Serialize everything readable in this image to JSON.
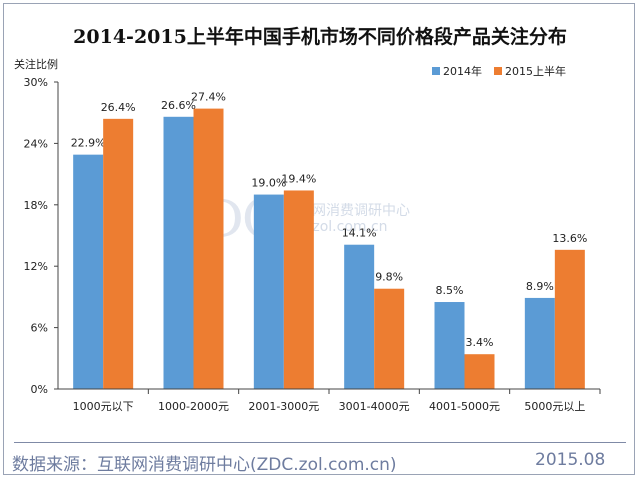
{
  "chart_data": {
    "type": "bar",
    "title": "2014-2015上半年中国手机市场不同价格段产品关注分布",
    "ylabel": "关注比例",
    "xlabel": "",
    "categories": [
      "1000元以下",
      "1000-2000元",
      "2001-3000元",
      "3001-4000元",
      "4001-5000元",
      "5000元以上"
    ],
    "series": [
      {
        "name": "2014年",
        "color": "#5b9bd5",
        "values": [
          22.9,
          26.6,
          19.0,
          14.1,
          8.5,
          8.9
        ],
        "labels": [
          "22.9%",
          "26.6%",
          "19.0%",
          "14.1%",
          "8.5%",
          "8.9%"
        ]
      },
      {
        "name": "2015上半年",
        "color": "#ed7d31",
        "values": [
          26.4,
          27.4,
          19.4,
          9.8,
          3.4,
          13.6
        ],
        "labels": [
          "26.4%",
          "27.4%",
          "19.4%",
          "9.8%",
          "3.4%",
          "13.6%"
        ]
      }
    ],
    "ylim": [
      0,
      30
    ],
    "yticks": [
      0,
      6,
      12,
      18,
      24,
      30
    ],
    "ytick_labels": [
      "0%",
      "6%",
      "12%",
      "18%",
      "24%",
      "30%"
    ],
    "grid": false,
    "legend": "top-right"
  },
  "watermark": {
    "logo": "ZDC",
    "name": "互联网消费调研中心",
    "url": "zdc.zol.com.cn"
  },
  "footer": {
    "source": "数据来源：互联网消费调研中心(ZDC.zol.com.cn)",
    "date": "2015.08"
  }
}
